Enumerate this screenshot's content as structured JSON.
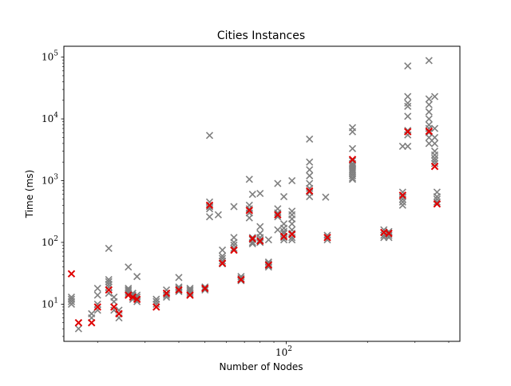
{
  "chart_data": {
    "type": "scatter",
    "title": "Cities Instances",
    "xlabel": "Number of Nodes",
    "ylabel": "Time (ms)",
    "xscale": "log",
    "yscale": "log",
    "xlim": [
      15,
      440
    ],
    "ylim": [
      2.5,
      150000
    ],
    "grid": false,
    "marker": "x",
    "x_ticks": [
      {
        "value": 100,
        "base": "10",
        "exp": "2"
      }
    ],
    "y_ticks": [
      {
        "value": 10,
        "base": "10",
        "exp": "1"
      },
      {
        "value": 100,
        "base": "10",
        "exp": "2"
      },
      {
        "value": 1000,
        "base": "10",
        "exp": "3"
      },
      {
        "value": 10000,
        "base": "10",
        "exp": "4"
      },
      {
        "value": 100000,
        "base": "10",
        "exp": "5"
      }
    ],
    "colors": {
      "all_runs": "#808080",
      "highlighted": "#e00000"
    },
    "series": [
      {
        "role": "all_runs",
        "points": [
          [
            16,
            13
          ],
          [
            16,
            12
          ],
          [
            16,
            11
          ],
          [
            16,
            10
          ],
          [
            17,
            5
          ],
          [
            17,
            4
          ],
          [
            19,
            7
          ],
          [
            19,
            6
          ],
          [
            19,
            5
          ],
          [
            20,
            18
          ],
          [
            20,
            14
          ],
          [
            20,
            10
          ],
          [
            20,
            8
          ],
          [
            22,
            80
          ],
          [
            22,
            25
          ],
          [
            22,
            23
          ],
          [
            22,
            21
          ],
          [
            22,
            19
          ],
          [
            22,
            17
          ],
          [
            22,
            15
          ],
          [
            23,
            13
          ],
          [
            23,
            11
          ],
          [
            23,
            9
          ],
          [
            23,
            8
          ],
          [
            24,
            8
          ],
          [
            24,
            7
          ],
          [
            24,
            6
          ],
          [
            26,
            40
          ],
          [
            26,
            18
          ],
          [
            26,
            17
          ],
          [
            26,
            16
          ],
          [
            26,
            15
          ],
          [
            26,
            14
          ],
          [
            27,
            15
          ],
          [
            27,
            14
          ],
          [
            27,
            13
          ],
          [
            27,
            12
          ],
          [
            28,
            28
          ],
          [
            28,
            14
          ],
          [
            28,
            13
          ],
          [
            28,
            12
          ],
          [
            28,
            11
          ],
          [
            33,
            12
          ],
          [
            33,
            11
          ],
          [
            33,
            10
          ],
          [
            33,
            9
          ],
          [
            36,
            17
          ],
          [
            36,
            15
          ],
          [
            36,
            14
          ],
          [
            36,
            13
          ],
          [
            40,
            27
          ],
          [
            40,
            19
          ],
          [
            40,
            18
          ],
          [
            40,
            17
          ],
          [
            40,
            16
          ],
          [
            44,
            18
          ],
          [
            44,
            17
          ],
          [
            44,
            16
          ],
          [
            44,
            15
          ],
          [
            44,
            14
          ],
          [
            50,
            19
          ],
          [
            50,
            18
          ],
          [
            50,
            17
          ],
          [
            52,
            5400
          ],
          [
            52,
            450
          ],
          [
            52,
            380
          ],
          [
            52,
            350
          ],
          [
            52,
            260
          ],
          [
            56,
            280
          ],
          [
            58,
            75
          ],
          [
            58,
            60
          ],
          [
            58,
            55
          ],
          [
            58,
            50
          ],
          [
            58,
            45
          ],
          [
            64,
            380
          ],
          [
            64,
            120
          ],
          [
            64,
            100
          ],
          [
            64,
            90
          ],
          [
            64,
            80
          ],
          [
            64,
            75
          ],
          [
            68,
            28
          ],
          [
            68,
            26
          ],
          [
            68,
            25
          ],
          [
            68,
            24
          ],
          [
            73,
            1050
          ],
          [
            73,
            400
          ],
          [
            73,
            350
          ],
          [
            73,
            300
          ],
          [
            73,
            250
          ],
          [
            75,
            600
          ],
          [
            75,
            120
          ],
          [
            75,
            110
          ],
          [
            75,
            100
          ],
          [
            75,
            95
          ],
          [
            80,
            620
          ],
          [
            80,
            180
          ],
          [
            80,
            140
          ],
          [
            80,
            120
          ],
          [
            80,
            110
          ],
          [
            80,
            100
          ],
          [
            86,
            110
          ],
          [
            86,
            48
          ],
          [
            86,
            45
          ],
          [
            86,
            42
          ],
          [
            86,
            40
          ],
          [
            93,
            900
          ],
          [
            93,
            350
          ],
          [
            93,
            300
          ],
          [
            93,
            260
          ],
          [
            93,
            160
          ],
          [
            98,
            550
          ],
          [
            98,
            200
          ],
          [
            98,
            170
          ],
          [
            98,
            150
          ],
          [
            98,
            140
          ],
          [
            98,
            120
          ],
          [
            98,
            110
          ],
          [
            105,
            1000
          ],
          [
            105,
            320
          ],
          [
            105,
            280
          ],
          [
            105,
            240
          ],
          [
            105,
            200
          ],
          [
            105,
            160
          ],
          [
            105,
            140
          ],
          [
            105,
            120
          ],
          [
            105,
            110
          ],
          [
            122,
            4700
          ],
          [
            122,
            2000
          ],
          [
            122,
            1500
          ],
          [
            122,
            1200
          ],
          [
            122,
            900
          ],
          [
            122,
            750
          ],
          [
            122,
            650
          ],
          [
            122,
            550
          ],
          [
            140,
            540
          ],
          [
            142,
            130
          ],
          [
            142,
            120
          ],
          [
            142,
            110
          ],
          [
            176,
            7200
          ],
          [
            176,
            6200
          ],
          [
            176,
            3300
          ],
          [
            176,
            2100
          ],
          [
            176,
            1900
          ],
          [
            176,
            1800
          ],
          [
            176,
            1700
          ],
          [
            176,
            1600
          ],
          [
            176,
            1500
          ],
          [
            176,
            1400
          ],
          [
            176,
            1300
          ],
          [
            176,
            1200
          ],
          [
            176,
            1100
          ],
          [
            176,
            1050
          ],
          [
            230,
            160
          ],
          [
            230,
            145
          ],
          [
            230,
            130
          ],
          [
            230,
            120
          ],
          [
            240,
            150
          ],
          [
            240,
            140
          ],
          [
            240,
            130
          ],
          [
            240,
            120
          ],
          [
            270,
            3600
          ],
          [
            270,
            650
          ],
          [
            270,
            550
          ],
          [
            270,
            500
          ],
          [
            270,
            450
          ],
          [
            270,
            400
          ],
          [
            282,
            72000
          ],
          [
            282,
            23000
          ],
          [
            282,
            18000
          ],
          [
            282,
            16000
          ],
          [
            282,
            11000
          ],
          [
            282,
            6500
          ],
          [
            282,
            5500
          ],
          [
            282,
            3600
          ],
          [
            338,
            88000
          ],
          [
            338,
            21000
          ],
          [
            338,
            17000
          ],
          [
            338,
            13000
          ],
          [
            338,
            10000
          ],
          [
            338,
            8000
          ],
          [
            338,
            7000
          ],
          [
            338,
            6000
          ],
          [
            338,
            5000
          ],
          [
            338,
            4000
          ],
          [
            355,
            23000
          ],
          [
            355,
            7000
          ],
          [
            355,
            5000
          ],
          [
            355,
            4000
          ],
          [
            355,
            3000
          ],
          [
            355,
            2600
          ],
          [
            355,
            2300
          ],
          [
            355,
            2100
          ],
          [
            355,
            1900
          ],
          [
            355,
            1700
          ],
          [
            362,
            650
          ],
          [
            362,
            550
          ],
          [
            362,
            500
          ],
          [
            362,
            450
          ],
          [
            362,
            420
          ]
        ]
      },
      {
        "role": "highlighted",
        "points": [
          [
            16,
            31
          ],
          [
            17,
            5
          ],
          [
            19,
            5
          ],
          [
            20,
            9
          ],
          [
            22,
            17
          ],
          [
            23,
            9
          ],
          [
            24,
            7
          ],
          [
            26,
            14
          ],
          [
            27,
            13
          ],
          [
            28,
            12
          ],
          [
            33,
            9
          ],
          [
            36,
            15
          ],
          [
            40,
            17
          ],
          [
            44,
            14
          ],
          [
            50,
            18
          ],
          [
            52,
            400
          ],
          [
            58,
            46
          ],
          [
            64,
            75
          ],
          [
            68,
            25
          ],
          [
            73,
            330
          ],
          [
            75,
            115
          ],
          [
            80,
            105
          ],
          [
            86,
            43
          ],
          [
            93,
            280
          ],
          [
            98,
            125
          ],
          [
            105,
            135
          ],
          [
            122,
            680
          ],
          [
            142,
            120
          ],
          [
            176,
            2200
          ],
          [
            230,
            145
          ],
          [
            240,
            140
          ],
          [
            270,
            580
          ],
          [
            282,
            6200
          ],
          [
            338,
            6300
          ],
          [
            355,
            1700
          ],
          [
            362,
            420
          ]
        ]
      }
    ]
  }
}
